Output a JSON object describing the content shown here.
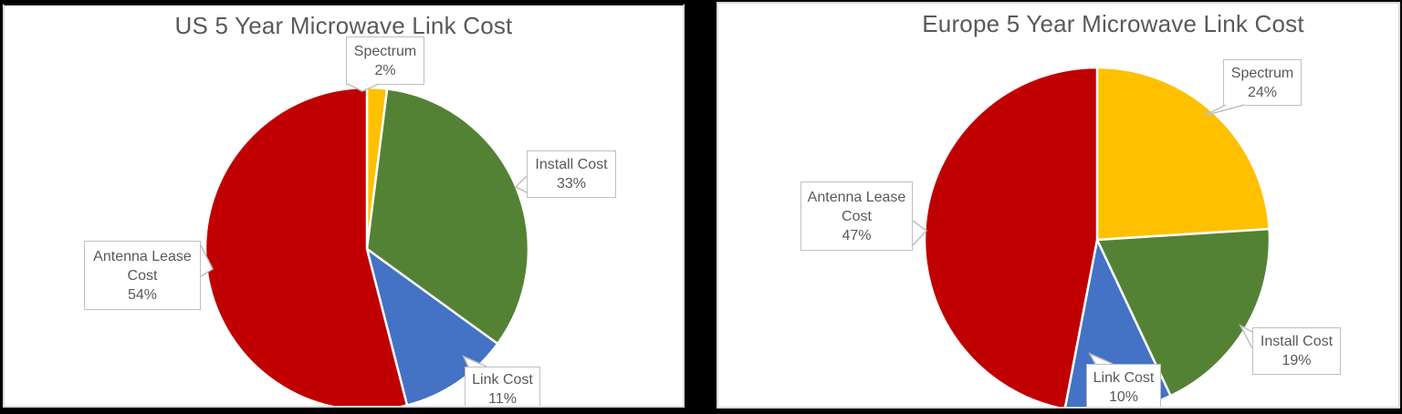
{
  "style": {
    "canvas_bg": "#000000",
    "panel_bg": "#FFFFFF",
    "panel_border": "#D9D9D9",
    "title_color": "#595959",
    "label_color": "#595959",
    "callout_border": "#BFBFBF",
    "slice_separator": "#FFFFFF"
  },
  "chart_data": [
    {
      "type": "pie",
      "title": "US 5 Year Microwave Link Cost",
      "categories": [
        "Spectrum",
        "Install Cost",
        "Link Cost",
        "Antenna Lease Cost"
      ],
      "values": [
        2,
        33,
        11,
        54
      ],
      "unit": "%",
      "slice_colors": [
        "#FFC000",
        "#548235",
        "#4472C4",
        "#C00000"
      ],
      "start_angle": "top",
      "direction": "clockwise",
      "legend": "none",
      "label_style": "outside callout boxes",
      "callouts": [
        {
          "category": "Spectrum",
          "lines": [
            "Spectrum",
            "2%"
          ]
        },
        {
          "category": "Install Cost",
          "lines": [
            "Install Cost",
            "33%"
          ]
        },
        {
          "category": "Link Cost",
          "lines": [
            "Link Cost",
            "11%"
          ]
        },
        {
          "category": "Antenna Lease Cost",
          "lines": [
            "Antenna Lease",
            "Cost",
            "54%"
          ]
        }
      ]
    },
    {
      "type": "pie",
      "title": "Europe 5 Year Microwave Link Cost",
      "categories": [
        "Spectrum",
        "Install Cost",
        "Link Cost",
        "Antenna Lease Cost"
      ],
      "values": [
        24,
        19,
        10,
        47
      ],
      "unit": "%",
      "slice_colors": [
        "#FFC000",
        "#548235",
        "#4472C4",
        "#C00000"
      ],
      "start_angle": "top",
      "direction": "clockwise",
      "legend": "none",
      "label_style": "outside callout boxes",
      "callouts": [
        {
          "category": "Spectrum",
          "lines": [
            "Spectrum",
            "24%"
          ]
        },
        {
          "category": "Install Cost",
          "lines": [
            "Install Cost",
            "19%"
          ]
        },
        {
          "category": "Link Cost",
          "lines": [
            "Link Cost",
            "10%"
          ]
        },
        {
          "category": "Antenna Lease Cost",
          "lines": [
            "Antenna Lease",
            "Cost",
            "47%"
          ]
        }
      ]
    }
  ]
}
